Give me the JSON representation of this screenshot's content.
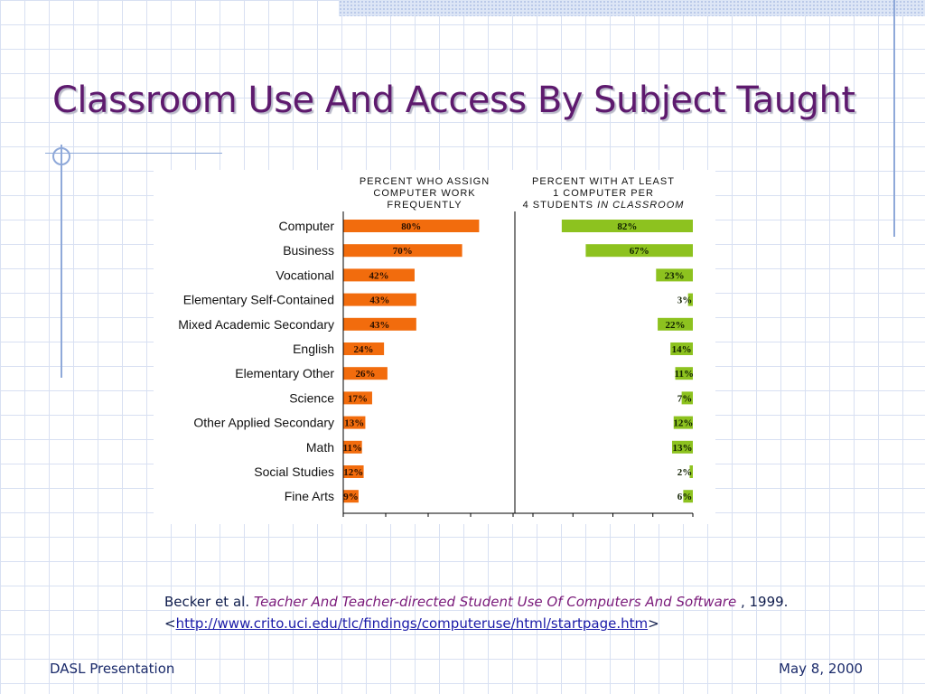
{
  "slide": {
    "title": "Classroom Use And Access By Subject Taught",
    "footer_left": "DASL Presentation",
    "footer_right": "May 8, 2000"
  },
  "citation": {
    "author": "Becker et al.",
    "title": "Teacher And Teacher-directed Student Use Of Computers And Software",
    "year": ", 1999.",
    "open_bracket": "<",
    "url": "http://www.crito.uci.edu/tlc/findings/computeruse/html/startpage.htm",
    "close_bracket": ">"
  },
  "colors": {
    "title": "#5e1a6e",
    "left_bar": "#f26c0d",
    "right_bar": "#8dc21f",
    "grid_line": "#d8e0f2"
  },
  "chart_data": {
    "type": "bar",
    "orientation": "horizontal",
    "categories": [
      "Computer",
      "Business",
      "Vocational",
      "Elementary Self-Contained",
      "Mixed Academic Secondary",
      "English",
      "Elementary Other",
      "Science",
      "Other Applied Secondary",
      "Math",
      "Social Studies",
      "Fine Arts"
    ],
    "panels": [
      {
        "header": [
          "PERCENT WHO ASSIGN",
          "COMPUTER WORK",
          "FREQUENTLY"
        ],
        "values": [
          80,
          70,
          42,
          43,
          43,
          24,
          26,
          17,
          13,
          11,
          12,
          9
        ],
        "labels": [
          "80%",
          "70%",
          "42%",
          "43%",
          "43%",
          "24%",
          "26%",
          "17%",
          "13%",
          "11%",
          "12%",
          "9%"
        ],
        "direction": "left-to-right",
        "color": "#f26c0d",
        "xlim": [
          0,
          100
        ]
      },
      {
        "header_lines": [
          {
            "text": "PERCENT WITH AT LEAST",
            "italic": ""
          },
          {
            "text": "1 COMPUTER PER",
            "italic": ""
          },
          {
            "text": "4 STUDENTS ",
            "italic": "IN CLASSROOM"
          }
        ],
        "values": [
          82,
          67,
          23,
          3,
          22,
          14,
          11,
          7,
          12,
          13,
          2,
          6
        ],
        "labels": [
          "82%",
          "67%",
          "23%",
          "3%",
          "22%",
          "14%",
          "11%",
          "7%",
          "12%",
          "13%",
          "2%",
          "6%"
        ],
        "direction": "right-to-left",
        "color": "#8dc21f",
        "xlim": [
          0,
          100
        ]
      }
    ],
    "grid": false,
    "legend": "none"
  }
}
